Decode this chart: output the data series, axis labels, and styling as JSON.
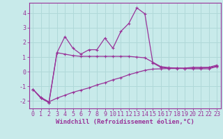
{
  "background_color": "#c8eaea",
  "grid_color": "#b0d8d8",
  "line_color": "#993399",
  "marker_color": "#993399",
  "line1_x": [
    0,
    1,
    2,
    3,
    4,
    5,
    6,
    7,
    8,
    9,
    10,
    11,
    12,
    13,
    14,
    15,
    16,
    17,
    18,
    19,
    20,
    21,
    22,
    23
  ],
  "line1_y": [
    -1.2,
    -1.8,
    -2.1,
    1.3,
    2.4,
    1.6,
    1.2,
    1.5,
    1.5,
    2.3,
    1.6,
    2.75,
    3.3,
    4.35,
    3.95,
    0.6,
    0.3,
    0.25,
    0.25,
    0.25,
    0.3,
    0.3,
    0.3,
    0.45
  ],
  "line2_x": [
    0,
    1,
    2,
    3,
    4,
    5,
    6,
    7,
    8,
    9,
    10,
    11,
    12,
    13,
    14,
    15,
    16,
    17,
    18,
    19,
    20,
    21,
    22,
    23
  ],
  "line2_y": [
    -1.2,
    -1.8,
    -2.1,
    1.3,
    1.2,
    1.1,
    1.05,
    1.05,
    1.05,
    1.05,
    1.05,
    1.05,
    1.05,
    1.0,
    0.95,
    0.65,
    0.35,
    0.28,
    0.25,
    0.22,
    0.2,
    0.2,
    0.2,
    0.35
  ],
  "line3_x": [
    0,
    1,
    2,
    3,
    4,
    5,
    6,
    7,
    8,
    9,
    10,
    11,
    12,
    13,
    14,
    15,
    16,
    17,
    18,
    19,
    20,
    21,
    22,
    23
  ],
  "line3_y": [
    -1.2,
    -1.75,
    -2.05,
    -1.8,
    -1.6,
    -1.4,
    -1.25,
    -1.1,
    -0.9,
    -0.75,
    -0.55,
    -0.4,
    -0.2,
    -0.05,
    0.1,
    0.18,
    0.2,
    0.22,
    0.22,
    0.22,
    0.25,
    0.25,
    0.28,
    0.38
  ],
  "xlabel": "Windchill (Refroidissement éolien,°C)",
  "xlim": [
    -0.5,
    23.5
  ],
  "ylim": [
    -2.5,
    4.7
  ],
  "ytick_values": [
    -2,
    -1,
    0,
    1,
    2,
    3,
    4
  ],
  "xlabel_fontsize": 6.5,
  "tick_fontsize": 6.0
}
